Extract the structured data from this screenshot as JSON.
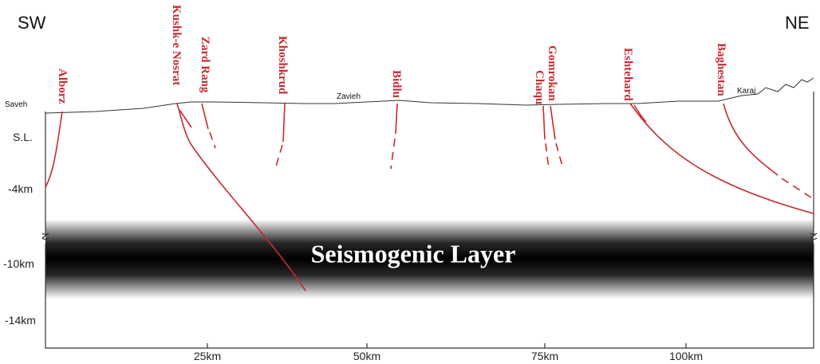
{
  "direction": {
    "left": "SW",
    "right": "NE"
  },
  "depth_labels": [
    "S.L.",
    "-4km",
    "-10km",
    "-14km"
  ],
  "distance_labels": [
    "25km",
    "50km",
    "75km",
    "100km"
  ],
  "towns": [
    "Saveh",
    "Zavieh",
    "Karaj"
  ],
  "faults": [
    "Alborz",
    "Kushk-e Nosrat",
    "Zard Rang",
    "Khoshkrud",
    "Bidlu",
    "Chaqu",
    "Gomrokan",
    "Eshtehard",
    "Baghestan"
  ],
  "layer": "Seismogenic Layer"
}
